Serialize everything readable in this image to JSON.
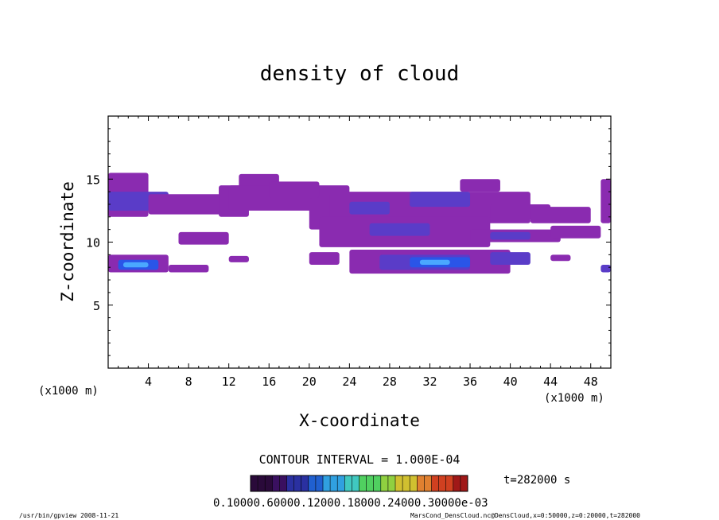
{
  "chart_data": {
    "type": "heatmap",
    "title": "density of cloud",
    "xlabel": "X-coordinate",
    "ylabel": "Z-coordinate",
    "x_unit_left": "(x1000 m)",
    "x_unit_right": "(x1000 m)",
    "xlim": [
      0,
      50
    ],
    "ylim": [
      0,
      20
    ],
    "x_ticks": [
      "4",
      "8",
      "12",
      "16",
      "20",
      "24",
      "28",
      "32",
      "36",
      "40",
      "44",
      "48"
    ],
    "y_ticks": [
      "5",
      "10",
      "15"
    ],
    "contour_interval": "CONTOUR INTERVAL = 1.000E-04",
    "time_label": "t=282000 s",
    "colorbar_labels": "0.10000.60000.12000.18000.24000.30000e-03",
    "footer_left": "/usr/bin/gpview 2008-11-21",
    "footer_right": "MarsCond_DensCloud.nc@DensCloud,x=0:50000,z=0:20000,t=282000",
    "colors": {
      "low": "#8a2bb0",
      "mid": "#5a3cc8",
      "high": "#2a55e8",
      "peak": "#4aa8ff"
    },
    "regions": [
      {
        "x": [
          0,
          4
        ],
        "z": [
          12.0,
          15.5
        ],
        "level": "low"
      },
      {
        "x": [
          0,
          6
        ],
        "z": [
          12.5,
          14.0
        ],
        "level": "mid"
      },
      {
        "x": [
          4,
          12
        ],
        "z": [
          12.2,
          13.8
        ],
        "level": "low"
      },
      {
        "x": [
          11,
          14
        ],
        "z": [
          12.0,
          14.5
        ],
        "level": "low"
      },
      {
        "x": [
          13,
          17
        ],
        "z": [
          14.0,
          15.4
        ],
        "level": "low"
      },
      {
        "x": [
          12,
          24
        ],
        "z": [
          12.5,
          14.5
        ],
        "level": "low"
      },
      {
        "x": [
          16,
          21
        ],
        "z": [
          13.5,
          14.8
        ],
        "level": "low"
      },
      {
        "x": [
          20,
          26
        ],
        "z": [
          11.0,
          13.5
        ],
        "level": "low"
      },
      {
        "x": [
          22,
          42
        ],
        "z": [
          11.5,
          14.0
        ],
        "level": "low"
      },
      {
        "x": [
          24,
          28
        ],
        "z": [
          12.2,
          13.2
        ],
        "level": "mid"
      },
      {
        "x": [
          30,
          36
        ],
        "z": [
          12.8,
          14.0
        ],
        "level": "mid"
      },
      {
        "x": [
          35,
          39
        ],
        "z": [
          14.0,
          15.0
        ],
        "level": "low"
      },
      {
        "x": [
          38,
          44
        ],
        "z": [
          11.8,
          13.0
        ],
        "level": "low"
      },
      {
        "x": [
          42,
          48
        ],
        "z": [
          11.5,
          12.8
        ],
        "level": "low"
      },
      {
        "x": [
          7,
          12
        ],
        "z": [
          9.8,
          10.8
        ],
        "level": "low"
      },
      {
        "x": [
          21,
          38
        ],
        "z": [
          9.6,
          12.0
        ],
        "level": "low"
      },
      {
        "x": [
          26,
          32
        ],
        "z": [
          10.5,
          11.5
        ],
        "level": "mid"
      },
      {
        "x": [
          36,
          45
        ],
        "z": [
          10.0,
          11.0
        ],
        "level": "low"
      },
      {
        "x": [
          38,
          42
        ],
        "z": [
          10.2,
          10.8
        ],
        "level": "mid"
      },
      {
        "x": [
          44,
          49
        ],
        "z": [
          10.3,
          11.3
        ],
        "level": "low"
      },
      {
        "x": [
          49,
          50
        ],
        "z": [
          11.5,
          15.0
        ],
        "level": "low"
      },
      {
        "x": [
          0,
          6
        ],
        "z": [
          7.6,
          9.0
        ],
        "level": "low"
      },
      {
        "x": [
          1,
          5
        ],
        "z": [
          7.8,
          8.6
        ],
        "level": "high"
      },
      {
        "x": [
          1.5,
          4
        ],
        "z": [
          8.0,
          8.4
        ],
        "level": "peak"
      },
      {
        "x": [
          6,
          10
        ],
        "z": [
          7.6,
          8.2
        ],
        "level": "low"
      },
      {
        "x": [
          12,
          14
        ],
        "z": [
          8.4,
          8.9
        ],
        "level": "low"
      },
      {
        "x": [
          20,
          23
        ],
        "z": [
          8.2,
          9.2
        ],
        "level": "low"
      },
      {
        "x": [
          24,
          40
        ],
        "z": [
          7.5,
          9.4
        ],
        "level": "low"
      },
      {
        "x": [
          27,
          36
        ],
        "z": [
          7.8,
          9.0
        ],
        "level": "mid"
      },
      {
        "x": [
          30,
          36
        ],
        "z": [
          8.0,
          8.8
        ],
        "level": "high"
      },
      {
        "x": [
          31,
          34
        ],
        "z": [
          8.2,
          8.6
        ],
        "level": "peak"
      },
      {
        "x": [
          38,
          42
        ],
        "z": [
          8.2,
          9.2
        ],
        "level": "mid"
      },
      {
        "x": [
          44,
          46
        ],
        "z": [
          8.5,
          9.0
        ],
        "level": "low"
      },
      {
        "x": [
          49,
          50
        ],
        "z": [
          7.6,
          8.2
        ],
        "level": "mid"
      }
    ]
  }
}
